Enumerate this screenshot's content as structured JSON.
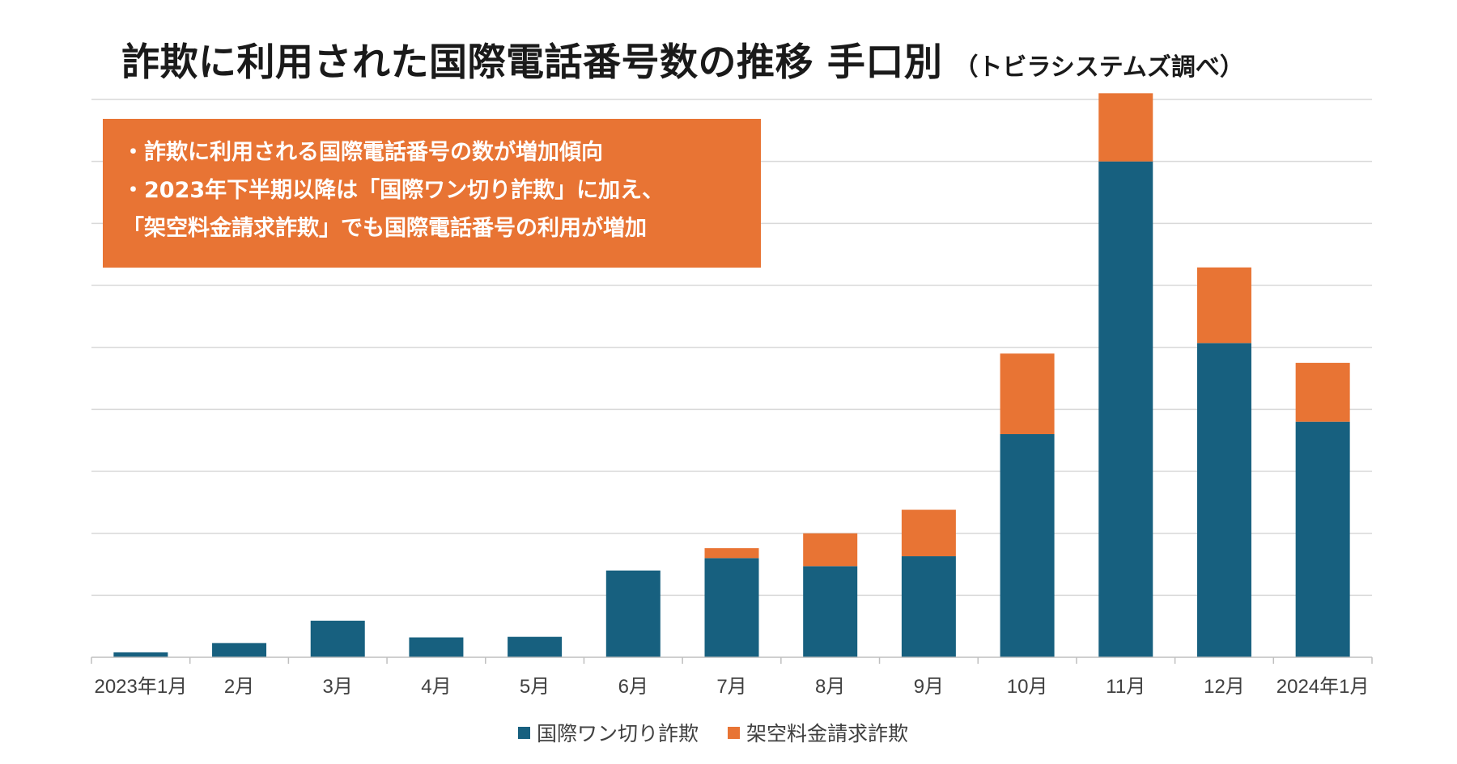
{
  "title": {
    "main": "詐欺に利用された国際電話番号数の推移 手口別",
    "sub": "（トビラシステムズ調べ）"
  },
  "notes": [
    "・詐欺に利用される国際電話番号の数が増加傾向",
    "・2023年下半期以降は「国際ワン切り詐欺」に加え、",
    "「架空料金請求詐欺」でも国際電話番号の利用が増加"
  ],
  "colors": {
    "series1": "#17607f",
    "series2": "#e87434",
    "grid": "#d9d9d9",
    "note_bg": "#e87434"
  },
  "chart_data": {
    "type": "bar",
    "stacked": true,
    "title": "詐欺に利用された国際電話番号数の推移 手口別",
    "xlabel": "",
    "ylabel": "",
    "ylim": [
      0,
      90
    ],
    "grid": true,
    "legend_position": "bottom",
    "categories": [
      "2023年1月",
      "2月",
      "3月",
      "4月",
      "5月",
      "6月",
      "7月",
      "8月",
      "9月",
      "10月",
      "11月",
      "12月",
      "2024年1月"
    ],
    "series": [
      {
        "name": "国際ワン切り詐欺",
        "color": "#17607f",
        "values": [
          0.8,
          2.3,
          5.9,
          3.2,
          3.3,
          14.0,
          16.0,
          14.7,
          16.3,
          36.0,
          80.0,
          50.7,
          38.0
        ]
      },
      {
        "name": "架空料金請求詐欺",
        "color": "#e87434",
        "values": [
          0,
          0,
          0,
          0,
          0,
          0,
          1.6,
          5.3,
          7.5,
          13.0,
          11.0,
          12.2,
          9.5
        ]
      }
    ]
  }
}
